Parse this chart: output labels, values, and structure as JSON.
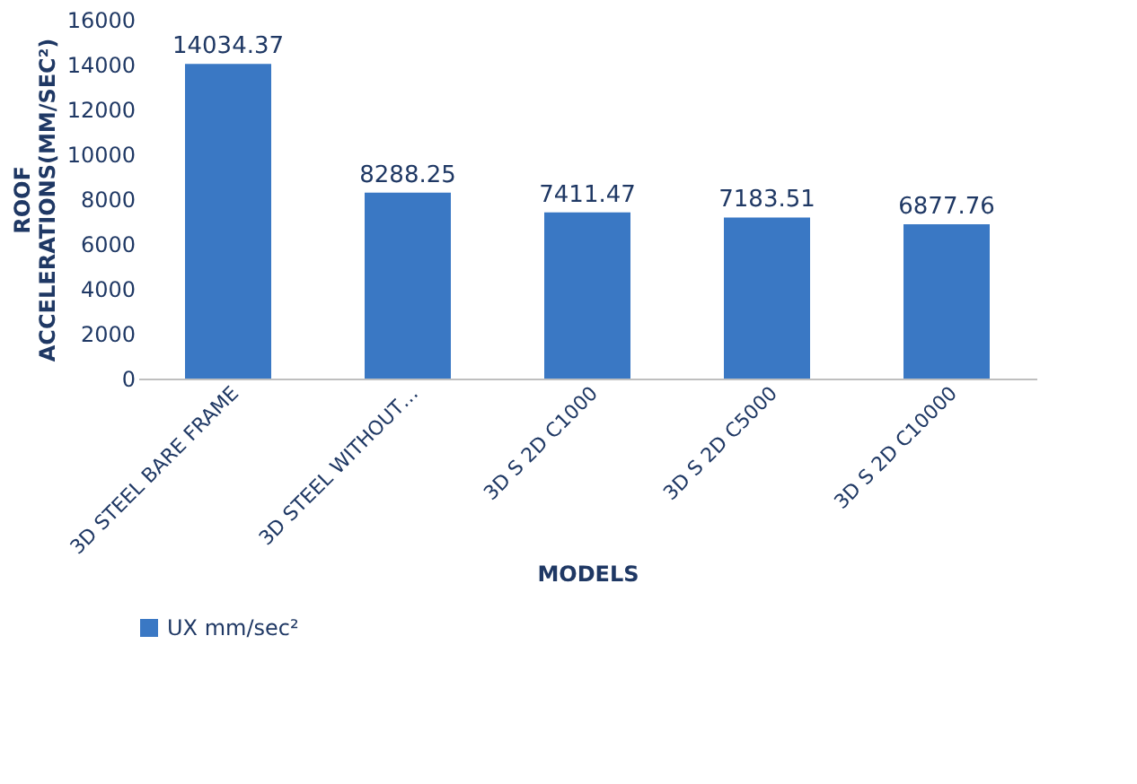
{
  "chart_data": {
    "type": "bar",
    "xlabel": "MODELS",
    "ylabel": "ROOF ACCELERATIONS(MM/SEC²)",
    "categories": [
      "3D STEEL BARE FRAME",
      "3D STEEL WITHOUT…",
      "3D S 2D C1000",
      "3D S 2D C5000",
      "3D S 2D C10000"
    ],
    "series": [
      {
        "name": "UX mm/sec²",
        "color": "#3a78c4",
        "values": [
          14034.37,
          8288.25,
          7411.47,
          7183.51,
          6877.76
        ]
      }
    ],
    "ylim": [
      0,
      16000
    ],
    "yticks": [
      0,
      2000,
      4000,
      6000,
      8000,
      10000,
      12000,
      14000,
      16000
    ],
    "data_labels": true,
    "grid": false,
    "legend": "bottom"
  }
}
